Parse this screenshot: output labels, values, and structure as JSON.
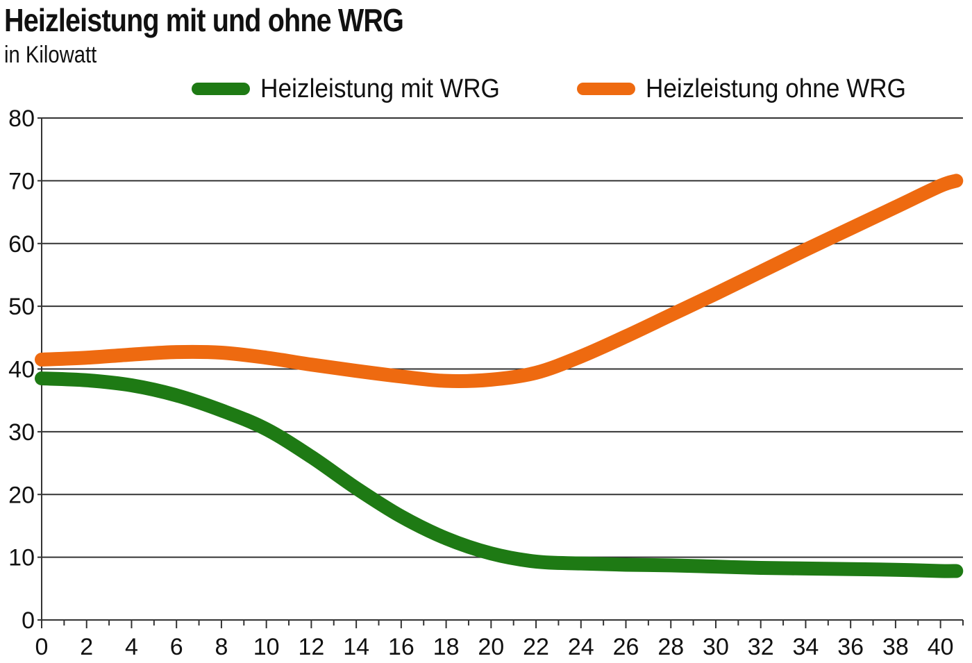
{
  "chart_data": {
    "type": "line",
    "title": "Heizleistung mit und ohne WRG",
    "subtitle": "in Kilowatt",
    "xlabel": "",
    "ylabel": "",
    "xlim": [
      0,
      41
    ],
    "ylim": [
      0,
      80
    ],
    "xticks": [
      0,
      2,
      4,
      6,
      8,
      10,
      12,
      14,
      16,
      18,
      20,
      22,
      24,
      26,
      28,
      30,
      32,
      34,
      36,
      38,
      40
    ],
    "yticks": [
      0,
      10,
      20,
      30,
      40,
      50,
      60,
      70,
      80
    ],
    "grid": "horizontal",
    "legend_position": "top",
    "x": [
      0,
      2,
      4,
      6,
      8,
      10,
      12,
      14,
      16,
      18,
      20,
      22,
      24,
      26,
      28,
      30,
      32,
      34,
      36,
      38,
      40,
      40.7
    ],
    "series": [
      {
        "name": "Heizleistung mit WRG",
        "color": "#1e7a14",
        "values": [
          38.5,
          38.2,
          37.4,
          35.8,
          33.4,
          30.4,
          26.0,
          21.0,
          16.5,
          13.0,
          10.6,
          9.3,
          9.0,
          8.8,
          8.7,
          8.5,
          8.3,
          8.2,
          8.1,
          8.0,
          7.8,
          7.8
        ]
      },
      {
        "name": "Heizleistung ohne WRG",
        "color": "#ee6a10",
        "values": [
          41.5,
          41.8,
          42.3,
          42.7,
          42.6,
          41.8,
          40.7,
          39.7,
          38.8,
          38.1,
          38.3,
          39.4,
          42.0,
          45.2,
          48.6,
          52.0,
          55.5,
          59.0,
          62.4,
          65.8,
          69.2,
          70.0
        ]
      }
    ]
  }
}
